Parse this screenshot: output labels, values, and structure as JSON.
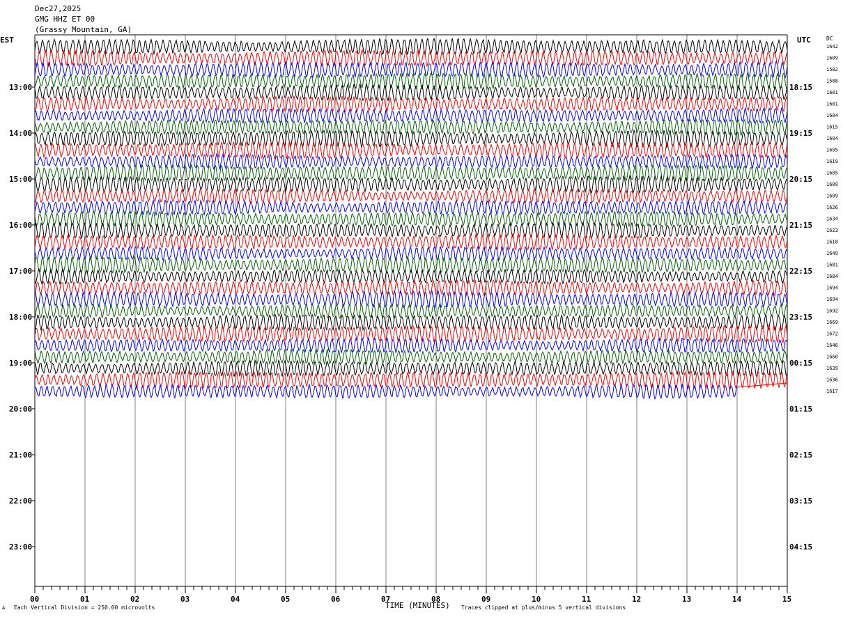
{
  "header": {
    "date": "Dec27,2025",
    "station": "GMG HHZ ET 00",
    "location": "(Grassy Mountain, GA)"
  },
  "left_axis_label": "EST",
  "right_axis_label": "UTC",
  "dc_label": "DC",
  "footer": {
    "scale_note": "Each Vertical Division =  250.00 microvolts",
    "xlabel": "TIME (MINUTES)",
    "clip_note": "Traces clipped at plus/minus 5 vertical divisions",
    "corner_mark": "A"
  },
  "colors": {
    "trace_cycle": [
      "#000000",
      "#ff0000",
      "#0000ff",
      "#006400"
    ],
    "grid": "#808080",
    "axis": "#000000",
    "background": "#ffffff"
  },
  "chart_data": {
    "type": "line",
    "title": "GMG HHZ ET 00",
    "xlabel": "TIME (MINUTES)",
    "ylabel": "",
    "xlim": [
      0,
      15
    ],
    "x_ticks": [
      "00",
      "01",
      "02",
      "03",
      "04",
      "05",
      "06",
      "07",
      "08",
      "09",
      "10",
      "11",
      "12",
      "13",
      "14",
      "15"
    ],
    "hour_labels_est": [
      "13:00",
      "14:00",
      "15:00",
      "16:00",
      "17:00",
      "18:00",
      "19:00",
      "20:00",
      "21:00",
      "22:00",
      "23:00"
    ],
    "hour_labels_utc": [
      "18:15",
      "19:15",
      "20:15",
      "21:15",
      "22:15",
      "23:15",
      "00:15",
      "01:15",
      "02:15",
      "03:15",
      "04:15"
    ],
    "dc_offsets": [
      1642,
      1609,
      1582,
      1588,
      1601,
      1601,
      1604,
      1615,
      1604,
      1605,
      1619,
      1605,
      1609,
      1609,
      1626,
      1634,
      1623,
      1618,
      1649,
      1681,
      1684,
      1694,
      1694,
      1692,
      1669,
      1672,
      1646,
      1660,
      1639,
      1636,
      1617
    ],
    "last_trace_end_minute": 14.0,
    "clip_divisions": 5,
    "microvolts_per_division": 250.0
  }
}
